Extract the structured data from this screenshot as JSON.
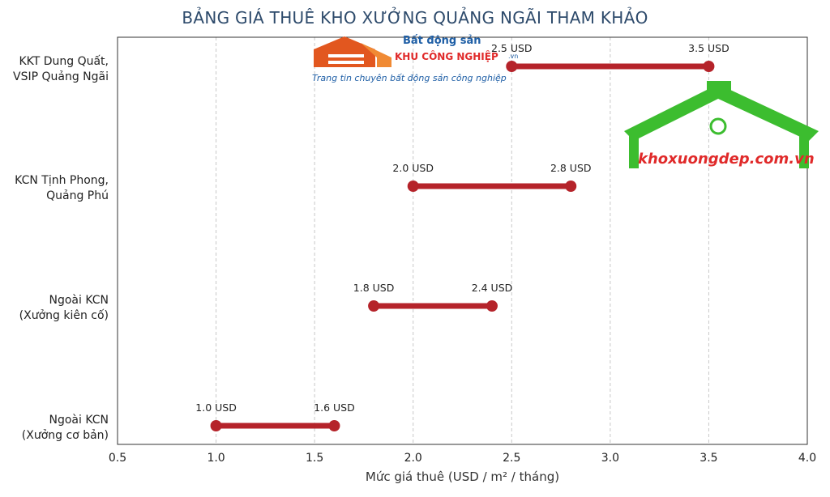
{
  "chart_data": {
    "type": "range_bar",
    "title": "BẢNG GIÁ THUÊ KHO XƯỞNG QUẢNG NGÃI THAM KHẢO",
    "xlabel": "Mức giá thuê (USD / m² / tháng)",
    "ylabel": "",
    "xlim": [
      0.5,
      4.0
    ],
    "xticks": [
      "0.5",
      "1.0",
      "1.5",
      "2.0",
      "2.5",
      "3.0",
      "3.5",
      "4.0"
    ],
    "grid": "vertical dashed",
    "categories": [
      {
        "line1": "KKT Dung Quất,",
        "line2": "VSIP Quảng Ngãi",
        "low": 2.5,
        "high": 3.5,
        "low_label": "2.5 USD",
        "high_label": "3.5 USD"
      },
      {
        "line1": "KCN Tịnh Phong,",
        "line2": "Quảng Phú",
        "low": 2.0,
        "high": 2.8,
        "low_label": "2.0 USD",
        "high_label": "2.8 USD"
      },
      {
        "line1": "Ngoài KCN",
        "line2": "(Xưởng kiên cố)",
        "low": 1.8,
        "high": 2.4,
        "low_label": "1.8 USD",
        "high_label": "2.4 USD"
      },
      {
        "line1": "Ngoài KCN",
        "line2": "(Xưởng cơ bản)",
        "low": 1.0,
        "high": 1.6,
        "low_label": "1.0 USD",
        "high_label": "1.6 USD"
      }
    ],
    "colors": {
      "range": "#b5232a",
      "title": "#2d4a6b",
      "grid": "#c8c8c8"
    }
  },
  "watermarks": {
    "logo1": {
      "line1": "Bất động sản",
      "line2": "KHU CÔNG NGHIỆP",
      "suffix": ".vn",
      "tagline": "Trang tin chuyên bất động sản công nghiệp"
    },
    "logo2": {
      "text": "khoxuongdep.com.vn"
    }
  }
}
